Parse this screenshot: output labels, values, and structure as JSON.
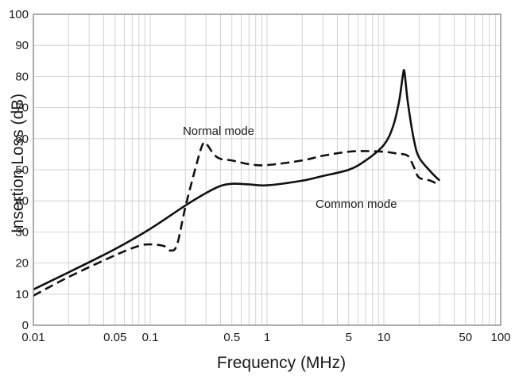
{
  "chart_data": {
    "type": "line",
    "xlabel": "Frequency (MHz)",
    "ylabel": "Insertion Loss (dB)",
    "x_scale": "log",
    "xlim": [
      0.01,
      100
    ],
    "ylim": [
      0,
      100
    ],
    "grid": true,
    "x_tick_labels": [
      {
        "value": 0.01,
        "label": "0.01"
      },
      {
        "value": 0.05,
        "label": "0.05"
      },
      {
        "value": 0.1,
        "label": "0.1"
      },
      {
        "value": 0.5,
        "label": "0.5"
      },
      {
        "value": 1,
        "label": "1"
      },
      {
        "value": 5,
        "label": "5"
      },
      {
        "value": 10,
        "label": "10"
      },
      {
        "value": 50,
        "label": "50"
      },
      {
        "value": 100,
        "label": "100"
      }
    ],
    "y_ticks": [
      0,
      10,
      20,
      30,
      40,
      50,
      60,
      70,
      80,
      90,
      100
    ],
    "annotations": [
      {
        "text": "Normal mode",
        "series": "Normal mode"
      },
      {
        "text": "Common mode",
        "series": "Common mode"
      }
    ],
    "series": [
      {
        "name": "Common mode",
        "style": "solid",
        "points": [
          [
            0.01,
            11.5
          ],
          [
            0.02,
            17
          ],
          [
            0.05,
            24.5
          ],
          [
            0.1,
            31
          ],
          [
            0.2,
            38.5
          ],
          [
            0.3,
            42.5
          ],
          [
            0.4,
            44.8
          ],
          [
            0.5,
            45.5
          ],
          [
            0.7,
            45.3
          ],
          [
            1,
            45
          ],
          [
            2,
            46.5
          ],
          [
            3,
            48
          ],
          [
            5,
            50
          ],
          [
            7,
            53
          ],
          [
            10,
            58
          ],
          [
            12,
            64
          ],
          [
            13.5,
            72
          ],
          [
            14.5,
            80
          ],
          [
            15,
            81.5
          ],
          [
            16,
            72
          ],
          [
            18,
            60
          ],
          [
            20,
            54
          ],
          [
            25,
            49.5
          ],
          [
            30,
            46.5
          ]
        ]
      },
      {
        "name": "Normal mode",
        "style": "dashed",
        "points": [
          [
            0.01,
            9.5
          ],
          [
            0.02,
            15.5
          ],
          [
            0.05,
            22.5
          ],
          [
            0.08,
            25.5
          ],
          [
            0.1,
            26
          ],
          [
            0.13,
            25.5
          ],
          [
            0.15,
            24
          ],
          [
            0.17,
            26
          ],
          [
            0.2,
            38
          ],
          [
            0.25,
            52
          ],
          [
            0.28,
            58
          ],
          [
            0.3,
            58.5
          ],
          [
            0.35,
            55
          ],
          [
            0.4,
            53.5
          ],
          [
            0.5,
            53
          ],
          [
            0.7,
            51.8
          ],
          [
            1,
            51.5
          ],
          [
            2,
            53
          ],
          [
            3,
            54.5
          ],
          [
            5,
            55.8
          ],
          [
            7,
            56
          ],
          [
            10,
            55.8
          ],
          [
            13,
            55.2
          ],
          [
            16,
            54.5
          ],
          [
            18,
            51
          ],
          [
            20,
            47.5
          ],
          [
            25,
            46.5
          ],
          [
            30,
            45
          ]
        ]
      }
    ]
  }
}
